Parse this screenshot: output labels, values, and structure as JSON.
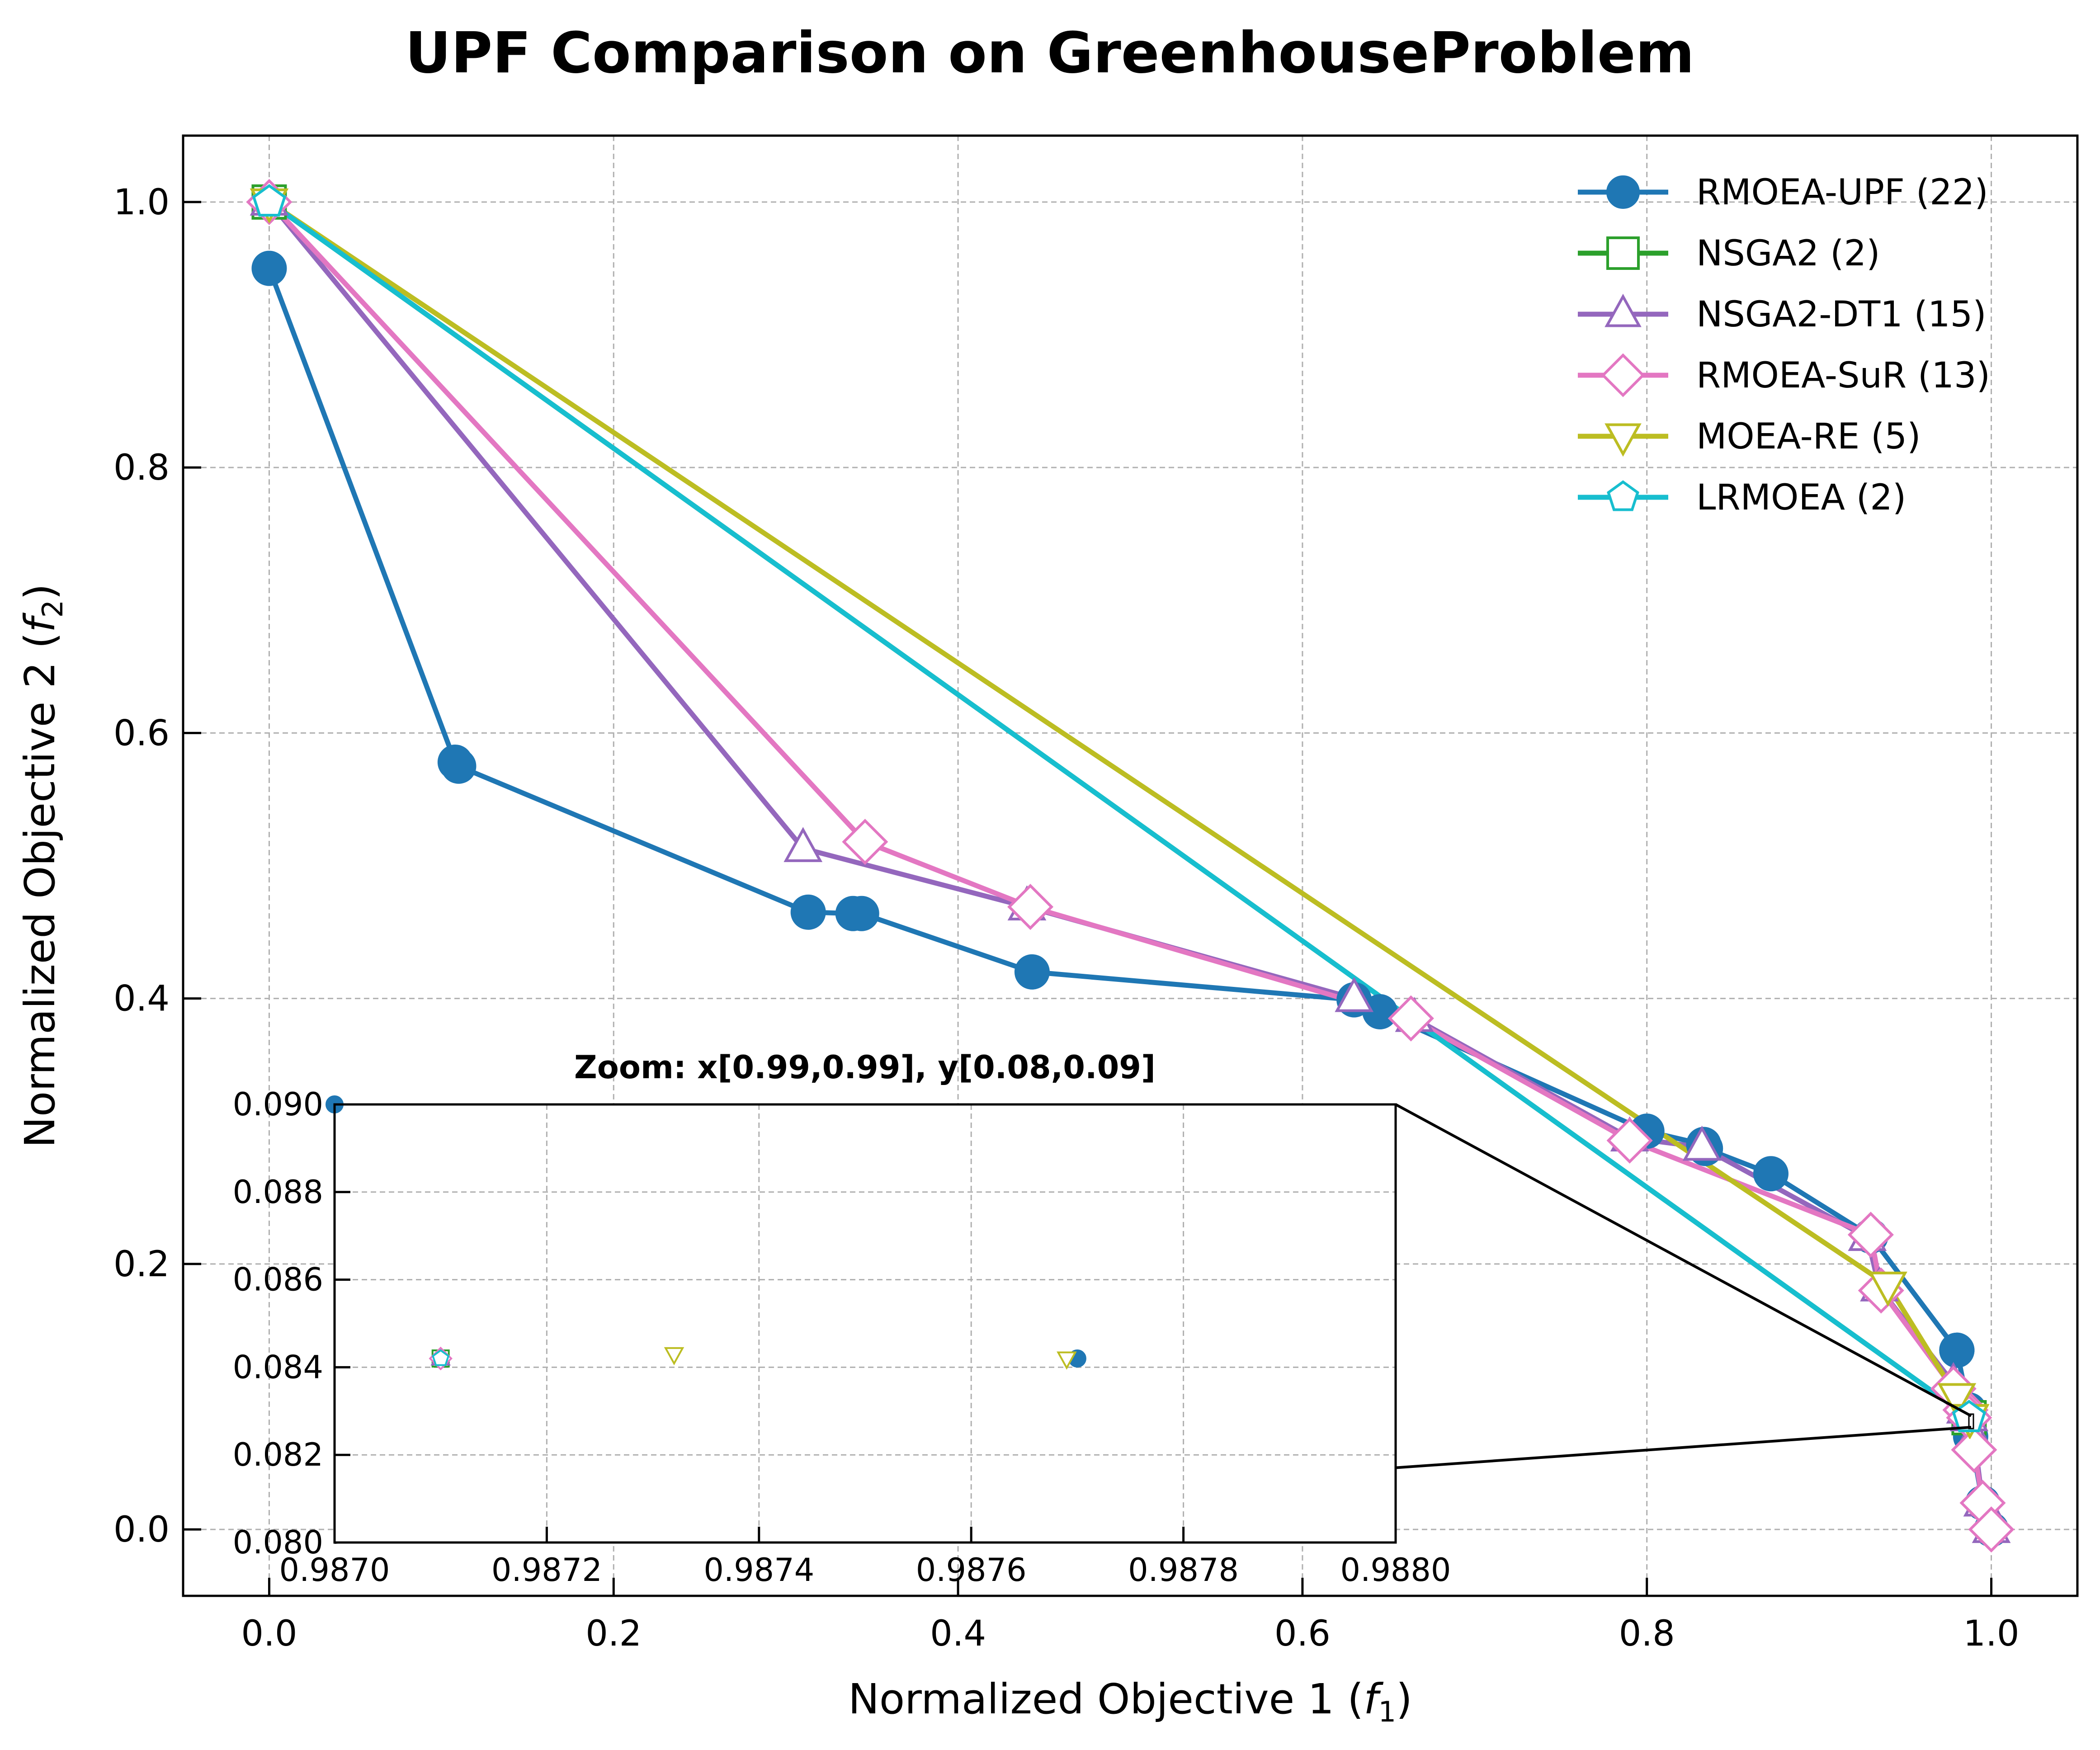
{
  "chart_data": {
    "type": "line",
    "title": "UPF Comparison on GreenhouseProblem",
    "xlabel": "Normalized Objective 1",
    "xlabel_var": "f",
    "xlabel_sub": "1",
    "ylabel": "Normalized Objective 2",
    "ylabel_var": "f",
    "ylabel_sub": "2",
    "xlim": [
      -0.05,
      1.05
    ],
    "ylim": [
      -0.05,
      1.05
    ],
    "xticks": [
      0.0,
      0.2,
      0.4,
      0.6,
      0.8,
      1.0
    ],
    "xtick_labels": [
      "0.0",
      "0.2",
      "0.4",
      "0.6",
      "0.8",
      "1.0"
    ],
    "yticks": [
      0.0,
      0.2,
      0.4,
      0.6,
      0.8,
      1.0
    ],
    "ytick_labels": [
      "0.0",
      "0.2",
      "0.4",
      "0.6",
      "0.8",
      "1.0"
    ],
    "grid": true,
    "legend_position": "top-right",
    "series": [
      {
        "name": "RMOEA-UPF (22)",
        "color": "#1f77b4",
        "marker": "circle",
        "filled": true,
        "points": [
          [
            0.0,
            0.95
          ],
          [
            0.108,
            0.578
          ],
          [
            0.11,
            0.575
          ],
          [
            0.313,
            0.465
          ],
          [
            0.339,
            0.464
          ],
          [
            0.344,
            0.464
          ],
          [
            0.443,
            0.42
          ],
          [
            0.63,
            0.399
          ],
          [
            0.645,
            0.39
          ],
          [
            0.8,
            0.3
          ],
          [
            0.833,
            0.29
          ],
          [
            0.834,
            0.287
          ],
          [
            0.872,
            0.268
          ],
          [
            0.93,
            0.221
          ],
          [
            0.98,
            0.135
          ],
          [
            0.98,
            0.135
          ],
          [
            0.98,
            0.135
          ],
          [
            0.987,
            0.09
          ],
          [
            0.9877,
            0.0842
          ],
          [
            0.988,
            0.07
          ],
          [
            0.995,
            0.02
          ],
          [
            1.0,
            0.0
          ]
        ]
      },
      {
        "name": "NSGA2 (2)",
        "color": "#2ca02c",
        "marker": "square",
        "filled": false,
        "points": [
          [
            0.0,
            1.0
          ],
          [
            0.9871,
            0.0842
          ]
        ]
      },
      {
        "name": "NSGA2-DT1 (15)",
        "color": "#9467bd",
        "marker": "triangle-up",
        "filled": false,
        "points": [
          [
            0.0,
            1.0
          ],
          [
            0.31,
            0.513
          ],
          [
            0.44,
            0.469
          ],
          [
            0.63,
            0.4
          ],
          [
            0.665,
            0.385
          ],
          [
            0.79,
            0.295
          ],
          [
            0.832,
            0.288
          ],
          [
            0.928,
            0.22
          ],
          [
            0.935,
            0.182
          ],
          [
            0.978,
            0.11
          ],
          [
            0.985,
            0.09
          ],
          [
            0.9871,
            0.0842
          ],
          [
            0.99,
            0.07
          ],
          [
            0.995,
            0.02
          ],
          [
            1.0,
            0.0
          ]
        ]
      },
      {
        "name": "RMOEA-SuR (13)",
        "color": "#e377c2",
        "marker": "diamond",
        "filled": false,
        "points": [
          [
            0.0,
            1.0
          ],
          [
            0.346,
            0.518
          ],
          [
            0.442,
            0.469
          ],
          [
            0.663,
            0.385
          ],
          [
            0.79,
            0.293
          ],
          [
            0.93,
            0.222
          ],
          [
            0.936,
            0.18
          ],
          [
            0.978,
            0.106
          ],
          [
            0.985,
            0.09
          ],
          [
            0.9871,
            0.0842
          ],
          [
            0.99,
            0.06
          ],
          [
            0.995,
            0.02
          ],
          [
            1.0,
            0.0
          ]
        ]
      },
      {
        "name": "MOEA-RE (5)",
        "color": "#bcbd22",
        "marker": "triangle-down",
        "filled": false,
        "points": [
          [
            0.0,
            1.0
          ],
          [
            0.94,
            0.184
          ],
          [
            0.98,
            0.1
          ],
          [
            0.98732,
            0.0843
          ],
          [
            0.98769,
            0.0842
          ]
        ]
      },
      {
        "name": "LRMOEA (2)",
        "color": "#17becf",
        "marker": "pentagon",
        "filled": false,
        "points": [
          [
            0.0,
            1.0
          ],
          [
            0.9871,
            0.0842
          ]
        ]
      }
    ],
    "inset": {
      "title": "Zoom: x[0.99,0.99], y[0.08,0.09]",
      "xlim": [
        0.987,
        0.988
      ],
      "ylim": [
        0.08,
        0.09
      ],
      "xticks": [
        0.987,
        0.9872,
        0.9874,
        0.9876,
        0.9878,
        0.988
      ],
      "xtick_labels": [
        "0.9870",
        "0.9872",
        "0.9874",
        "0.9876",
        "0.9878",
        "0.9880"
      ],
      "yticks": [
        0.08,
        0.082,
        0.084,
        0.086,
        0.088,
        0.09
      ],
      "ytick_labels": [
        "0.080",
        "0.082",
        "0.084",
        "0.086",
        "0.088",
        "0.090"
      ],
      "grid": true
    }
  }
}
